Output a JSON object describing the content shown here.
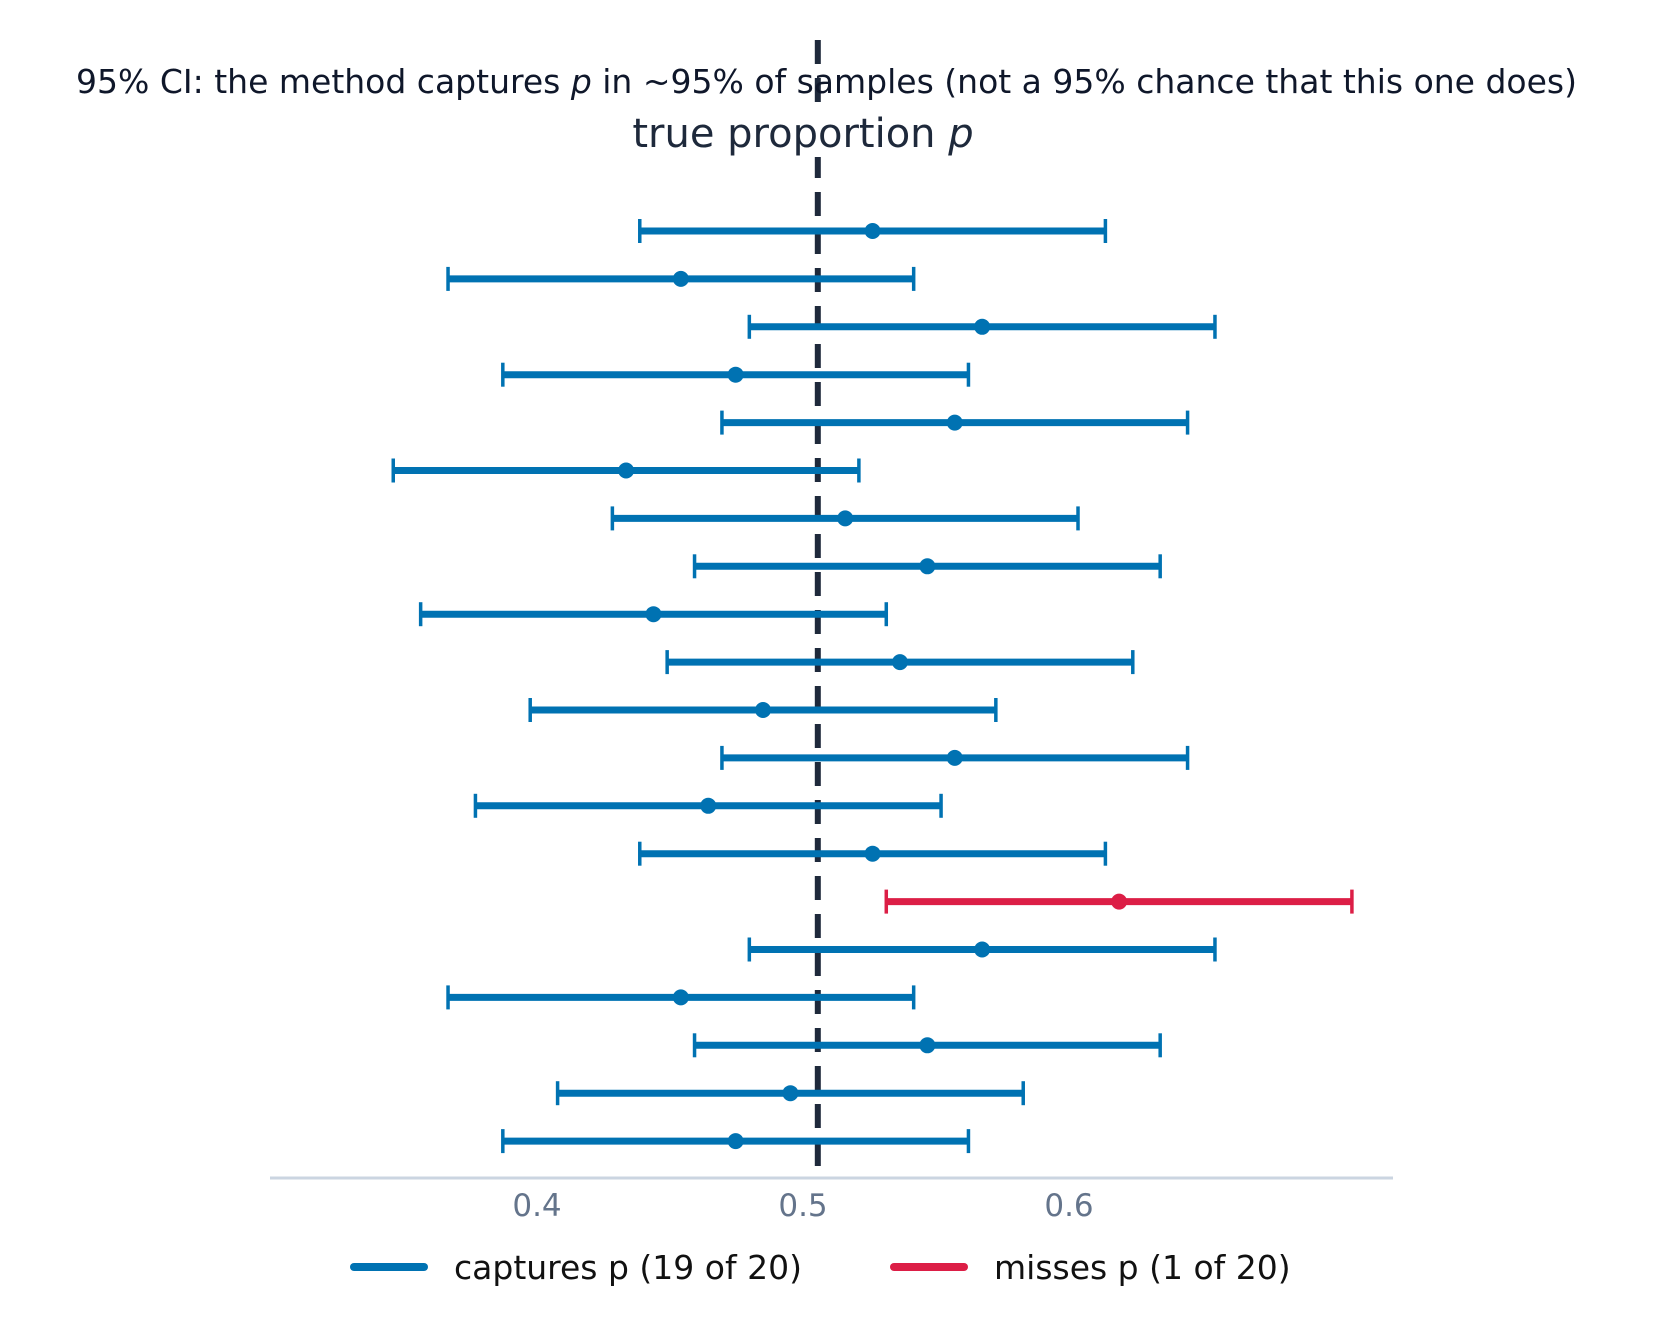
{
  "chart_data": {
    "type": "errorbar",
    "title": {
      "before": "95% CI: the method captures ",
      "var": "p",
      "after": " in ~95% of samples (not a 95% chance that this one does)"
    },
    "reference_line": {
      "value": 0.5,
      "label": {
        "before": "true proportion ",
        "var": "p"
      },
      "style": "dashed"
    },
    "xlim": [
      0.3,
      0.71
    ],
    "xticks": [
      0.4,
      0.5,
      0.6
    ],
    "xtick_labels": [
      "0.4",
      "0.5",
      "0.6"
    ],
    "grid": false,
    "legend_position": "bottom",
    "legend": [
      {
        "label": "captures p (19 of 20)",
        "color": "#0072b2"
      },
      {
        "label": "misses p (1 of 20)",
        "color": "#dc1e46"
      }
    ],
    "series": [
      {
        "name": "captures p (19 of 20)",
        "color": "#0072b2"
      },
      {
        "name": "misses p (1 of 20)",
        "color": "#dc1e46"
      }
    ],
    "intervals": [
      {
        "estimate": 0.52,
        "low": 0.435,
        "high": 0.605,
        "captures": true
      },
      {
        "estimate": 0.45,
        "low": 0.365,
        "high": 0.535,
        "captures": true
      },
      {
        "estimate": 0.56,
        "low": 0.475,
        "high": 0.645,
        "captures": true
      },
      {
        "estimate": 0.47,
        "low": 0.385,
        "high": 0.555,
        "captures": true
      },
      {
        "estimate": 0.55,
        "low": 0.465,
        "high": 0.635,
        "captures": true
      },
      {
        "estimate": 0.43,
        "low": 0.345,
        "high": 0.515,
        "captures": true
      },
      {
        "estimate": 0.51,
        "low": 0.425,
        "high": 0.595,
        "captures": true
      },
      {
        "estimate": 0.54,
        "low": 0.455,
        "high": 0.625,
        "captures": true
      },
      {
        "estimate": 0.44,
        "low": 0.355,
        "high": 0.525,
        "captures": true
      },
      {
        "estimate": 0.53,
        "low": 0.445,
        "high": 0.615,
        "captures": true
      },
      {
        "estimate": 0.48,
        "low": 0.395,
        "high": 0.565,
        "captures": true
      },
      {
        "estimate": 0.55,
        "low": 0.465,
        "high": 0.635,
        "captures": true
      },
      {
        "estimate": 0.46,
        "low": 0.375,
        "high": 0.545,
        "captures": true
      },
      {
        "estimate": 0.52,
        "low": 0.435,
        "high": 0.605,
        "captures": true
      },
      {
        "estimate": 0.61,
        "low": 0.525,
        "high": 0.695,
        "captures": false
      },
      {
        "estimate": 0.56,
        "low": 0.475,
        "high": 0.645,
        "captures": true
      },
      {
        "estimate": 0.45,
        "low": 0.365,
        "high": 0.535,
        "captures": true
      },
      {
        "estimate": 0.54,
        "low": 0.455,
        "high": 0.625,
        "captures": true
      },
      {
        "estimate": 0.49,
        "low": 0.405,
        "high": 0.575,
        "captures": true
      },
      {
        "estimate": 0.47,
        "low": 0.385,
        "high": 0.555,
        "captures": true
      }
    ],
    "colors": {
      "reference_line": "#1e293b",
      "axis_line": "#cbd5e1",
      "tick_label": "#64748b"
    }
  }
}
